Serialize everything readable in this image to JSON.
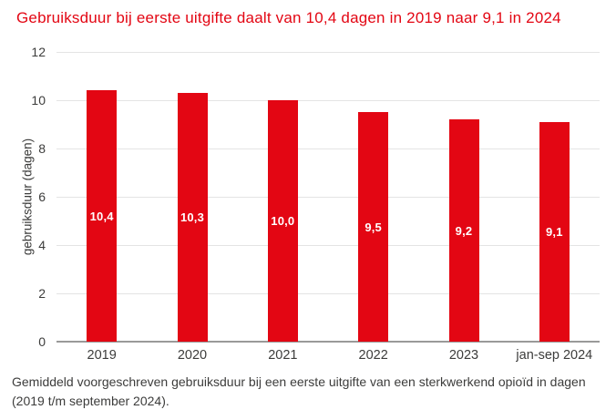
{
  "title": "Gebruiksduur bij eerste uitgifte daalt van 10,4 dagen in 2019 naar 9,1 in 2024",
  "footnote": "Gemiddeld voorgeschreven gebruiksduur bij een eerste uitgifte van een sterkwerkend opioïd in dagen (2019 t/m september 2024).",
  "colors": {
    "bar": "#E30613",
    "title": "#E30613",
    "grid": "#E4E4E4",
    "axis": "#9A9A99",
    "text": "#3C3C3B",
    "bar_label": "#FFFFFF",
    "background": "#FFFFFF"
  },
  "chart_data": {
    "type": "bar",
    "title": "Gebruiksduur bij eerste uitgifte daalt van 10,4 dagen in 2019 naar 9,1 in 2024",
    "categories": [
      "2019",
      "2020",
      "2021",
      "2022",
      "2023",
      "jan-sep 2024"
    ],
    "values": [
      10.4,
      10.3,
      10.0,
      9.5,
      9.2,
      9.1
    ],
    "value_labels": [
      "10,4",
      "10,3",
      "10,0",
      "9,5",
      "9,2",
      "9,1"
    ],
    "xlabel": "",
    "ylabel": "gebruiksduur (dagen)",
    "ylim": [
      0,
      12
    ],
    "yticks": [
      0,
      2,
      4,
      6,
      8,
      10,
      12
    ],
    "grid": true,
    "legend": false,
    "value_label_position": "center-of-bar"
  }
}
